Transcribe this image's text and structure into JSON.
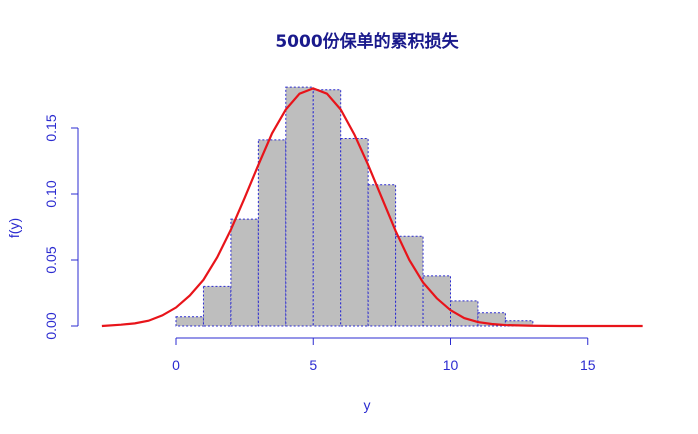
{
  "chart_data": {
    "type": "bar",
    "title": "5000份保单的累积损失",
    "xlabel": "y",
    "ylabel": "f(y)",
    "xlim": [
      -3,
      17
    ],
    "ylim": [
      0,
      0.18
    ],
    "x_ticks": [
      0,
      5,
      10,
      15
    ],
    "y_ticks": [
      0.0,
      0.05,
      0.1,
      0.15
    ],
    "y_tick_labels": [
      "0.00",
      "0.05",
      "0.10",
      "0.15"
    ],
    "grid": false,
    "legend": "none",
    "bin_edges": [
      0,
      1,
      2,
      3,
      4,
      5,
      6,
      7,
      8,
      9,
      10,
      11,
      12,
      13
    ],
    "values": [
      0.007,
      0.03,
      0.081,
      0.141,
      0.181,
      0.179,
      0.142,
      0.107,
      0.068,
      0.038,
      0.019,
      0.01,
      0.004
    ],
    "series": [
      {
        "type": "line",
        "x": [
          -2.7,
          -2,
          -1.5,
          -1,
          -0.5,
          0,
          0.5,
          1,
          1.5,
          2,
          2.5,
          3,
          3.5,
          4,
          4.5,
          5,
          5.5,
          6,
          6.5,
          7,
          7.5,
          8,
          8.5,
          9,
          9.5,
          10,
          10.5,
          11,
          11.5,
          12,
          13,
          14,
          15,
          16,
          17
        ],
        "y": [
          0.0,
          0.001,
          0.002,
          0.004,
          0.008,
          0.014,
          0.023,
          0.035,
          0.052,
          0.073,
          0.097,
          0.122,
          0.146,
          0.164,
          0.176,
          0.18,
          0.176,
          0.164,
          0.145,
          0.122,
          0.097,
          0.072,
          0.05,
          0.033,
          0.021,
          0.012,
          0.006,
          0.003,
          0.0015,
          0.0007,
          0.0002,
          0.0,
          0.0,
          0.0,
          0.0
        ]
      }
    ],
    "colors": {
      "bar_fill": "#bebebe",
      "bar_border": "#2b2bd0",
      "curve": "#e8141a",
      "axis": "#2b2bd0",
      "title": "#1a1a8c"
    }
  }
}
